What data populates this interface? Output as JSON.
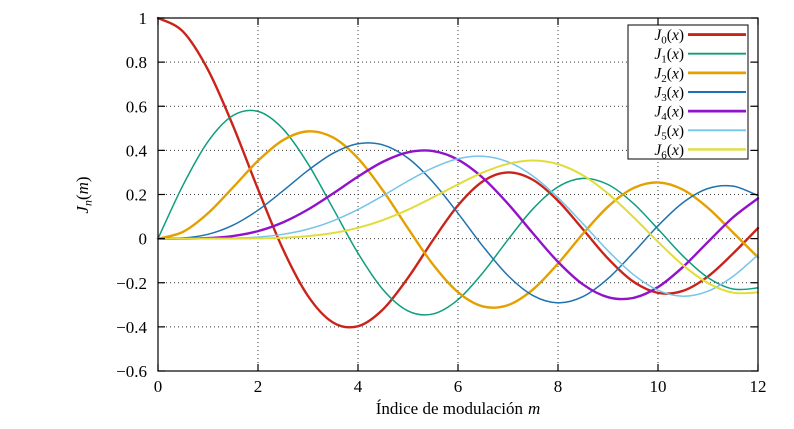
{
  "chart_data": {
    "type": "line",
    "title": "",
    "xlabel": {
      "text": "Índice de modulación",
      "math": "m"
    },
    "ylabel": {
      "base": "J",
      "sub": "n",
      "arg": "m"
    },
    "xlim": [
      0,
      12
    ],
    "ylim": [
      -0.6,
      1
    ],
    "xticks": [
      0,
      2,
      4,
      6,
      8,
      10,
      12
    ],
    "xtick_labels": [
      "0",
      "2",
      "4",
      "6",
      "8",
      "10",
      "12"
    ],
    "yticks": [
      -0.6,
      -0.4,
      -0.2,
      0,
      0.2,
      0.4,
      0.6,
      0.8,
      1
    ],
    "ytick_labels": [
      "−0.6",
      "−0.4",
      "−0.2",
      "0",
      "0.2",
      "0.4",
      "0.6",
      "0.8",
      "1"
    ],
    "grid": true,
    "grid_color": "#3a3a3a",
    "border_color": "#000000",
    "legend_position": "top-right",
    "x": [
      0,
      0.5,
      1,
      1.5,
      2,
      2.5,
      3,
      3.5,
      4,
      4.5,
      5,
      5.5,
      6,
      6.5,
      7,
      7.5,
      8,
      8.5,
      9,
      9.5,
      10,
      10.5,
      11,
      11.5,
      12
    ],
    "series": [
      {
        "label": {
          "base": "J",
          "sub": "0",
          "arg": "x"
        },
        "color": "#c9241a",
        "width": 2.4,
        "values": [
          1,
          0.9385,
          0.7652,
          0.5118,
          0.2239,
          -0.0484,
          -0.2601,
          -0.3801,
          -0.3971,
          -0.3205,
          -0.1776,
          -0.0068,
          0.1506,
          0.2601,
          0.3001,
          0.2663,
          0.1717,
          0.0419,
          -0.0903,
          -0.1939,
          -0.2459,
          -0.2366,
          -0.1712,
          -0.0677,
          0.0477
        ]
      },
      {
        "label": {
          "base": "J",
          "sub": "1",
          "arg": "x"
        },
        "color": "#0e9e7d",
        "width": 1.5,
        "values": [
          0,
          0.2423,
          0.4401,
          0.5579,
          0.5767,
          0.4971,
          0.3391,
          0.1374,
          -0.066,
          -0.2311,
          -0.3276,
          -0.3414,
          -0.2767,
          -0.1538,
          -0.0047,
          0.1352,
          0.2346,
          0.2731,
          0.2453,
          0.1613,
          0.0435,
          -0.0789,
          -0.1768,
          -0.2284,
          -0.2234
        ]
      },
      {
        "label": {
          "base": "J",
          "sub": "2",
          "arg": "x"
        },
        "color": "#e4a000",
        "width": 2.4,
        "values": [
          0,
          0.0306,
          0.1149,
          0.2321,
          0.3528,
          0.4461,
          0.4861,
          0.4586,
          0.3641,
          0.2178,
          0.0466,
          -0.1173,
          -0.2429,
          -0.3074,
          -0.3014,
          -0.2303,
          -0.113,
          0.0223,
          0.1448,
          0.2279,
          0.2546,
          0.2216,
          0.139,
          0.0279,
          -0.0849
        ]
      },
      {
        "label": {
          "base": "J",
          "sub": "3",
          "arg": "x"
        },
        "color": "#1e72b0",
        "width": 1.5,
        "values": [
          0,
          0.0026,
          0.0196,
          0.061,
          0.1289,
          0.2166,
          0.3091,
          0.3868,
          0.4302,
          0.4247,
          0.3648,
          0.2561,
          0.1148,
          -0.0353,
          -0.1676,
          -0.2581,
          -0.2911,
          -0.2626,
          -0.1809,
          -0.0653,
          0.0583,
          0.1633,
          0.2273,
          0.2381,
          0.1951
        ]
      },
      {
        "label": {
          "base": "J",
          "sub": "4",
          "arg": "x"
        },
        "color": "#9013c9",
        "width": 2.4,
        "values": [
          0,
          0.0002,
          0.0025,
          0.0118,
          0.034,
          0.0738,
          0.132,
          0.2044,
          0.2811,
          0.3484,
          0.3912,
          0.3967,
          0.3577,
          0.2748,
          0.1578,
          0.0238,
          -0.1054,
          -0.2077,
          -0.2655,
          -0.2691,
          -0.2196,
          -0.1283,
          -0.015,
          0.0963,
          0.1825
        ]
      },
      {
        "label": {
          "base": "J",
          "sub": "5",
          "arg": "x"
        },
        "color": "#76c4e9",
        "width": 1.5,
        "values": [
          0,
          0.0,
          0.0002,
          0.0019,
          0.007,
          0.0195,
          0.043,
          0.0804,
          0.1321,
          0.1947,
          0.2611,
          0.3209,
          0.3621,
          0.3736,
          0.3479,
          0.2835,
          0.1857,
          0.0671,
          -0.055,
          -0.1613,
          -0.234,
          -0.2611,
          -0.2383,
          -0.1711,
          -0.0735
        ]
      },
      {
        "label": {
          "base": "J",
          "sub": "6",
          "arg": "x"
        },
        "color": "#e2dc3a",
        "width": 2.0,
        "values": [
          0,
          0.0,
          0.0,
          0.0002,
          0.0012,
          0.0042,
          0.0113,
          0.0253,
          0.0491,
          0.0843,
          0.131,
          0.1868,
          0.2458,
          0.3,
          0.3392,
          0.3542,
          0.3376,
          0.2867,
          0.2043,
          0.0993,
          -0.0145,
          -0.1204,
          -0.2016,
          -0.2451,
          -0.2437
        ]
      }
    ]
  }
}
